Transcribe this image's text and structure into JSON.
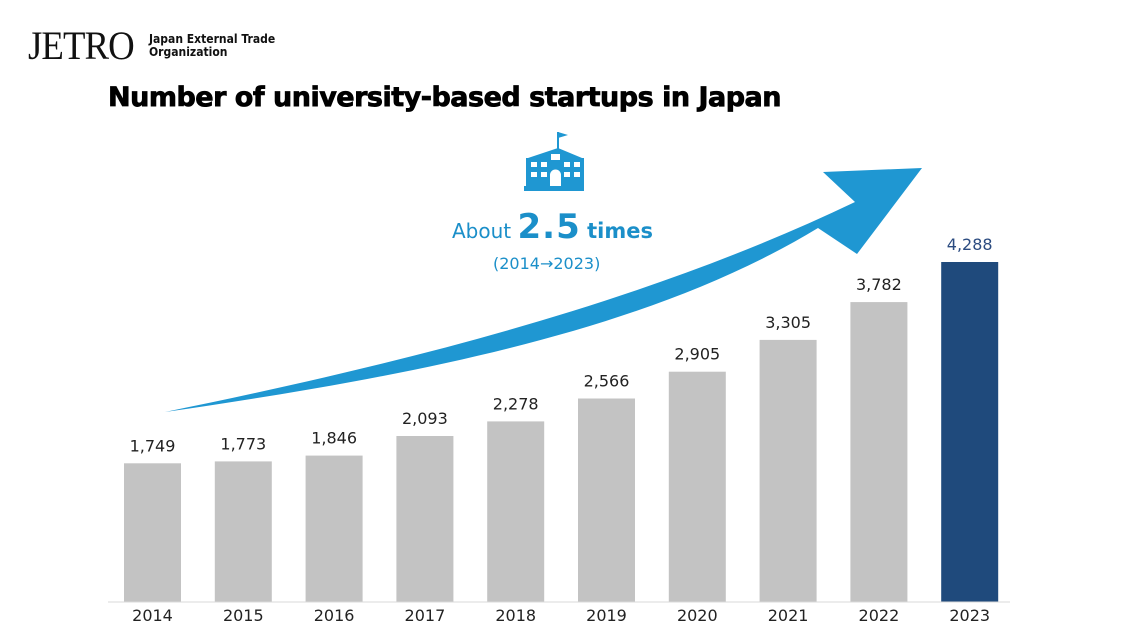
{
  "logo": {
    "mark": "JETRO",
    "line1": "Japan External Trade",
    "line2": "Organization"
  },
  "page_title": "Number of university-based startups in Japan",
  "callout": {
    "prefix": "About",
    "value": "2.5",
    "unit": "times",
    "period": "(2014→2023)"
  },
  "icons": {
    "school": "school-building-icon",
    "arrow": "growth-arrow-icon"
  },
  "colors": {
    "bar_default": "#c3c3c3",
    "bar_highlight": "#1f4a7c",
    "highlight_label": "#2b4b80",
    "arrow": "#1f97d2",
    "callout_text": "#1b8fc9"
  },
  "chart_data": {
    "type": "bar",
    "categories": [
      "2014",
      "2015",
      "2016",
      "2017",
      "2018",
      "2019",
      "2020",
      "2021",
      "2022",
      "2023"
    ],
    "values": [
      1749,
      1773,
      1846,
      2093,
      2278,
      2566,
      2905,
      3305,
      3782,
      4288
    ],
    "value_labels": [
      "1,749",
      "1,773",
      "1,846",
      "2,093",
      "2,278",
      "2,566",
      "2,905",
      "3,305",
      "3,782",
      "4,288"
    ],
    "highlight_index": 9,
    "title": "Number of university-based startups in Japan",
    "xlabel": "",
    "ylabel": "",
    "ylim": [
      0,
      4288
    ],
    "grid": false,
    "legend": "none"
  }
}
